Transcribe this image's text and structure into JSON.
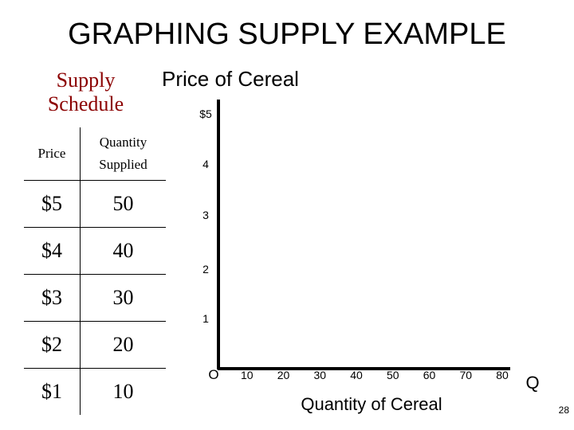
{
  "slide": {
    "title": "GRAPHING SUPPLY EXAMPLE",
    "page_number": "28"
  },
  "schedule": {
    "title_line1": "Supply",
    "title_line2": "Schedule",
    "headers": {
      "price": "Price",
      "quantity_line1": "Quantity",
      "quantity_line2": "Supplied"
    },
    "rows": [
      {
        "price": "$5",
        "quantity": "50"
      },
      {
        "price": "$4",
        "quantity": "40"
      },
      {
        "price": "$3",
        "quantity": "30"
      },
      {
        "price": "$2",
        "quantity": "20"
      },
      {
        "price": "$1",
        "quantity": "10"
      }
    ]
  },
  "chart_data": {
    "type": "line",
    "title": "Price of Cereal",
    "xlabel": "Quantity of Cereal",
    "ylabel": "Price of Cereal",
    "x_axis_end_label": "Q",
    "origin_label": "O",
    "xlim": [
      0,
      80
    ],
    "ylim": [
      0,
      5
    ],
    "x_ticks": [
      {
        "value": 10,
        "label": "10"
      },
      {
        "value": 20,
        "label": "20"
      },
      {
        "value": 30,
        "label": "30"
      },
      {
        "value": 40,
        "label": "40"
      },
      {
        "value": 50,
        "label": "50"
      },
      {
        "value": 60,
        "label": "60"
      },
      {
        "value": 70,
        "label": "70"
      },
      {
        "value": 80,
        "label": "80"
      }
    ],
    "y_ticks": [
      {
        "value": 5,
        "label": "$5"
      },
      {
        "value": 4,
        "label": "4"
      },
      {
        "value": 3,
        "label": "3"
      },
      {
        "value": 2,
        "label": "2"
      },
      {
        "value": 1,
        "label": "1"
      }
    ],
    "series": [],
    "grid": false,
    "axis_color": "#000000"
  }
}
